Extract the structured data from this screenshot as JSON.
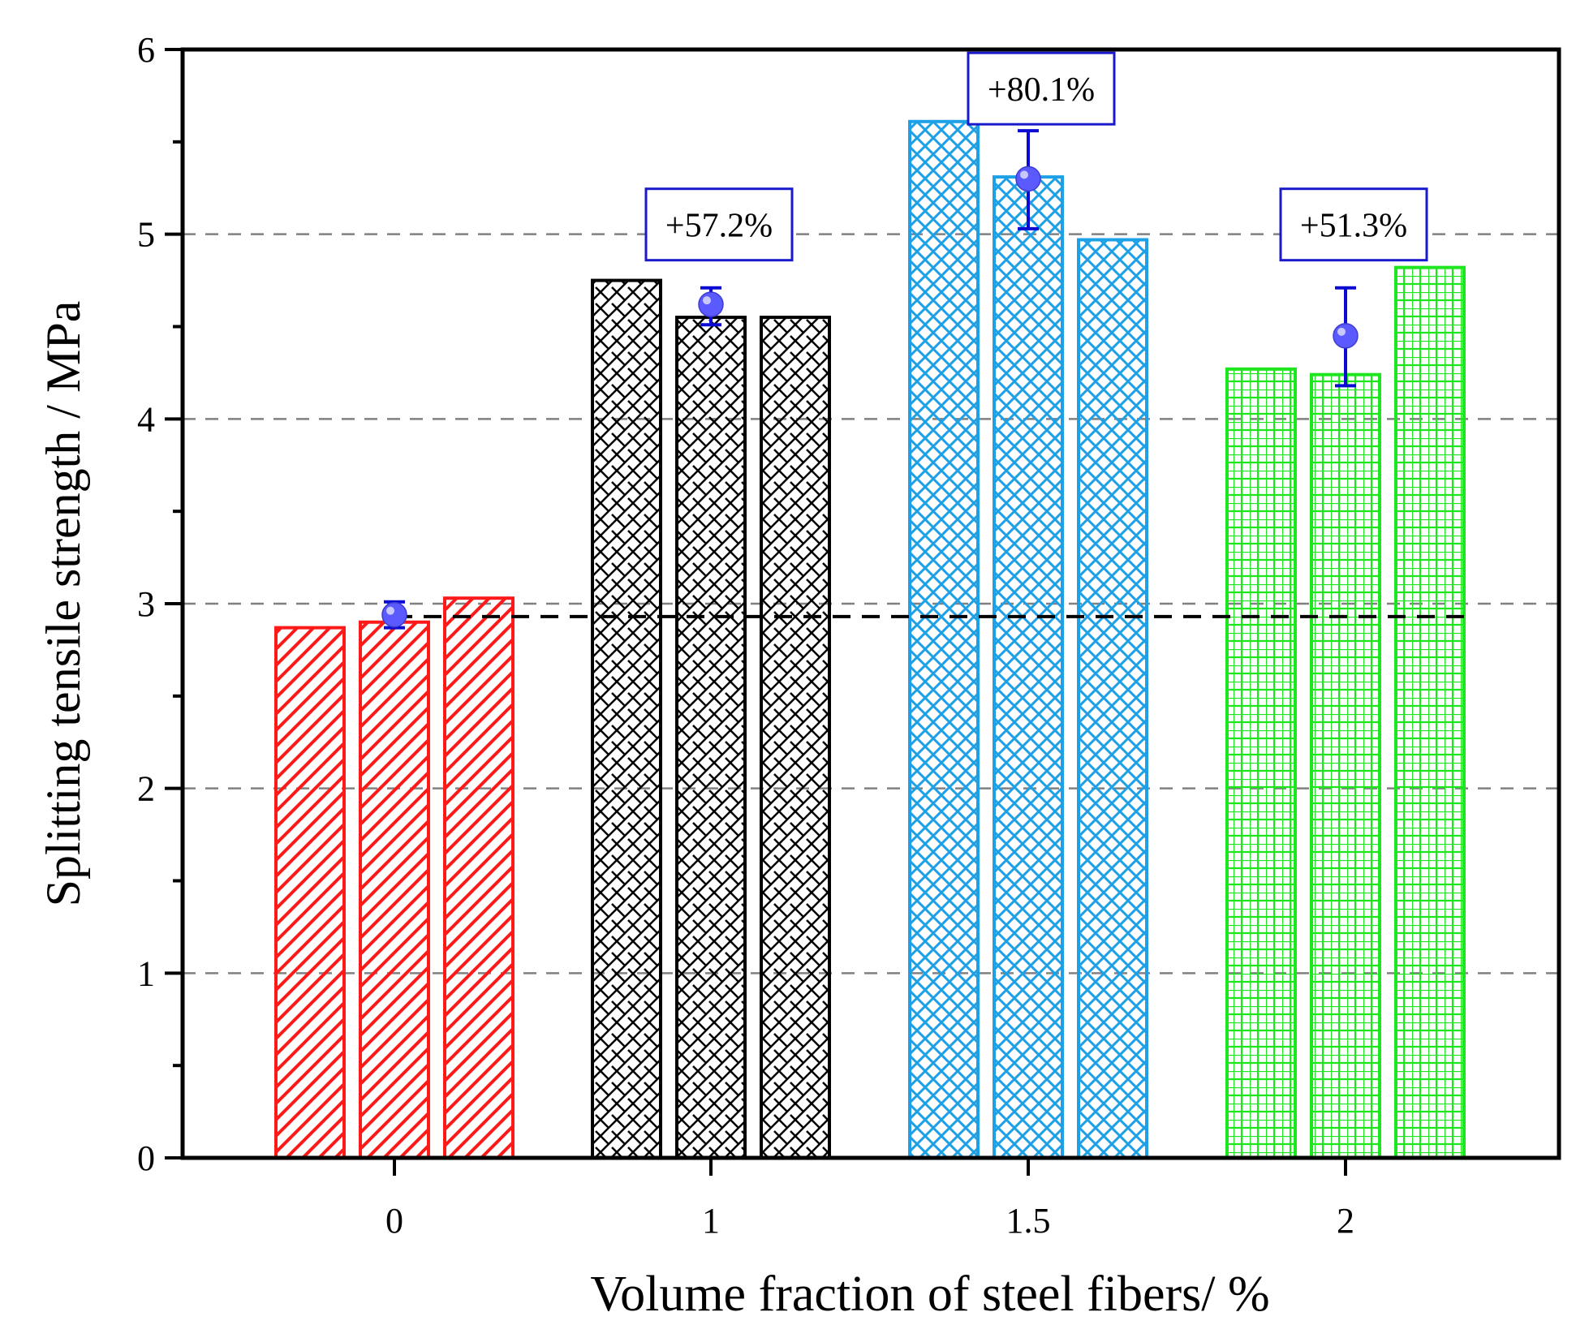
{
  "chart_data": {
    "type": "bar",
    "title": "",
    "xlabel": "Volume fraction of steel fibers/ %",
    "ylabel": "Splitting tensile strength / MPa",
    "ylim": [
      0,
      6
    ],
    "yticks": [
      "0",
      "1",
      "2",
      "3",
      "4",
      "5",
      "6"
    ],
    "grid": "horizontal dashed at major ticks",
    "categories": [
      "0",
      "1",
      "1.5",
      "2"
    ],
    "groups": [
      {
        "category": "0",
        "samples": [
          2.87,
          2.9,
          3.03
        ],
        "mean": 2.94,
        "err_low": 2.87,
        "err_high": 3.01,
        "color": "#ff1a1a",
        "pattern": "diagonal-hatch",
        "annotation": ""
      },
      {
        "category": "1",
        "samples": [
          4.75,
          4.55,
          4.55
        ],
        "mean": 4.62,
        "err_low": 4.51,
        "err_high": 4.71,
        "color": "#000000",
        "pattern": "zigzag",
        "annotation": "+57.2%"
      },
      {
        "category": "1.5",
        "samples": [
          5.61,
          5.31,
          4.97
        ],
        "mean": 5.3,
        "err_low": 5.03,
        "err_high": 5.56,
        "color": "#1ea0e6",
        "pattern": "crosshatch",
        "annotation": "+80.1%"
      },
      {
        "category": "2",
        "samples": [
          4.27,
          4.24,
          4.82
        ],
        "mean": 4.45,
        "err_low": 4.18,
        "err_high": 4.71,
        "color": "#1ee61e",
        "pattern": "grid",
        "annotation": "+51.3%"
      }
    ],
    "reference_line": {
      "value": 2.93,
      "style": "dashed",
      "color": "#000000"
    },
    "mean_marker_color": "#5a5aff",
    "errorbar_color": "#0a0ad2",
    "annotation_box_color": "#1a1acc"
  }
}
